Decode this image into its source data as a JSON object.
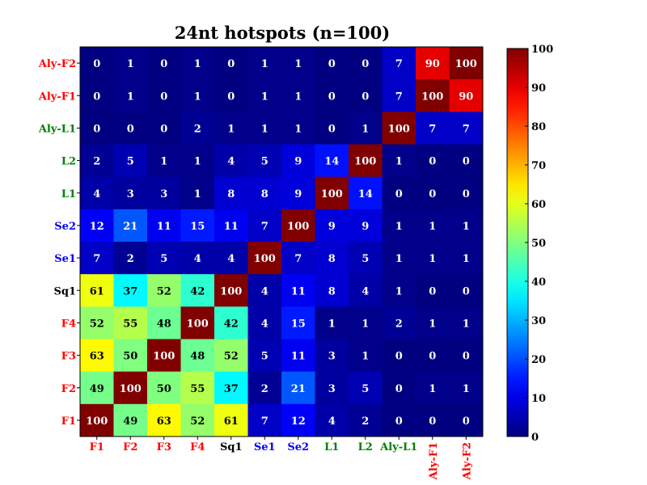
{
  "chart_data": {
    "type": "heatmap",
    "title": "24nt hotspots (n=100)",
    "rows": [
      "Aly-F2",
      "Aly-F1",
      "Aly-L1",
      "L2",
      "L1",
      "Se2",
      "Se1",
      "Sq1",
      "F4",
      "F3",
      "F2",
      "F1"
    ],
    "columns": [
      "F1",
      "F2",
      "F3",
      "F4",
      "Sq1",
      "Se1",
      "Se2",
      "L1",
      "L2",
      "Aly-L1",
      "Aly-F1",
      "Aly-F2"
    ],
    "values": [
      [
        0,
        1,
        0,
        1,
        0,
        1,
        1,
        0,
        0,
        7,
        90,
        100
      ],
      [
        0,
        1,
        0,
        1,
        0,
        1,
        1,
        0,
        0,
        7,
        100,
        90
      ],
      [
        0,
        0,
        0,
        2,
        1,
        1,
        1,
        0,
        1,
        100,
        7,
        7
      ],
      [
        2,
        5,
        1,
        1,
        4,
        5,
        9,
        14,
        100,
        1,
        0,
        0
      ],
      [
        4,
        3,
        3,
        1,
        8,
        8,
        9,
        100,
        14,
        0,
        0,
        0
      ],
      [
        12,
        21,
        11,
        15,
        11,
        7,
        100,
        9,
        9,
        1,
        1,
        1
      ],
      [
        7,
        2,
        5,
        4,
        4,
        100,
        7,
        8,
        5,
        1,
        1,
        1
      ],
      [
        61,
        37,
        52,
        42,
        100,
        4,
        11,
        8,
        4,
        1,
        0,
        0
      ],
      [
        52,
        55,
        48,
        100,
        42,
        4,
        15,
        1,
        1,
        2,
        1,
        1
      ],
      [
        63,
        50,
        100,
        48,
        52,
        5,
        11,
        3,
        1,
        0,
        0,
        0
      ],
      [
        49,
        100,
        50,
        55,
        37,
        2,
        21,
        3,
        5,
        0,
        1,
        1
      ],
      [
        100,
        49,
        63,
        52,
        61,
        7,
        12,
        4,
        2,
        0,
        0,
        0
      ]
    ],
    "label_colors": {
      "F1": "#ff0000",
      "F2": "#ff0000",
      "F3": "#ff0000",
      "F4": "#ff0000",
      "Sq1": "#000000",
      "Se1": "#0000ff",
      "Se2": "#0000ff",
      "L1": "#008000",
      "L2": "#008000",
      "Aly-L1": "#008000",
      "Aly-F1": "#ff0000",
      "Aly-F2": "#ff0000"
    },
    "colormap": "jet",
    "colorbar": {
      "range": [
        0,
        100
      ],
      "ticks": [
        0,
        10,
        20,
        30,
        40,
        50,
        60,
        70,
        80,
        90,
        100
      ]
    },
    "dark_text_threshold": [
      30,
      65
    ],
    "xlabel": "",
    "ylabel": ""
  }
}
